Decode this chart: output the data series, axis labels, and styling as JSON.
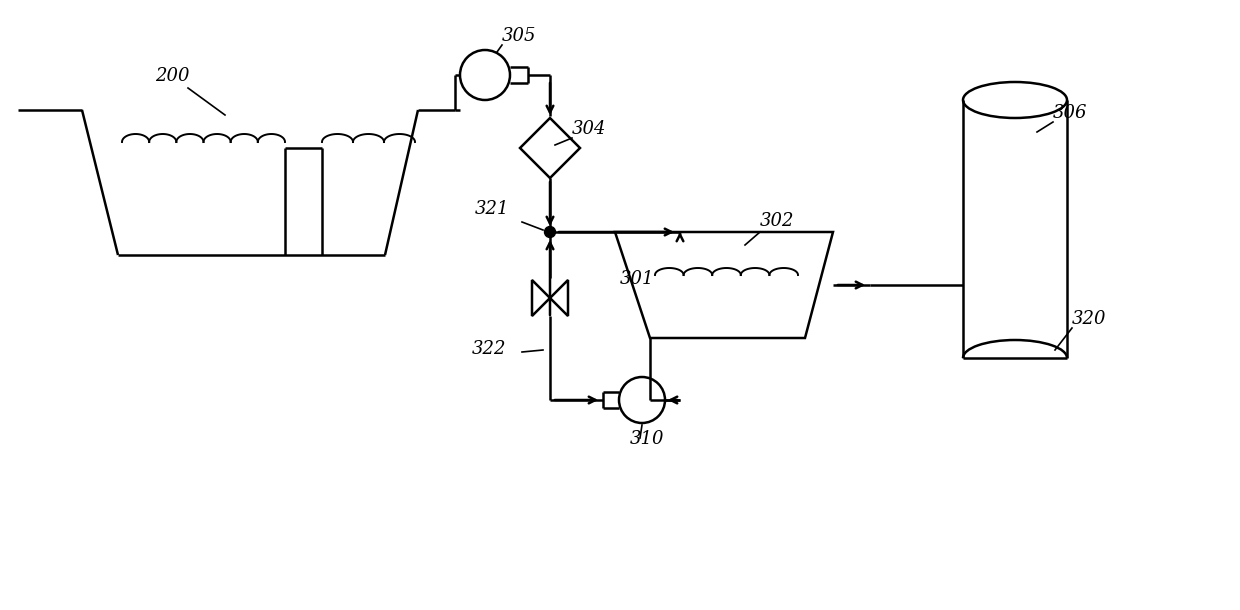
{
  "background_color": "#ffffff",
  "line_color": "#000000",
  "lw": 1.8,
  "lw_thin": 1.2,
  "figsize": [
    12.4,
    6.1
  ],
  "dpi": 100,
  "xlim": [
    0,
    12.4
  ],
  "ylim": [
    0,
    6.1
  ]
}
